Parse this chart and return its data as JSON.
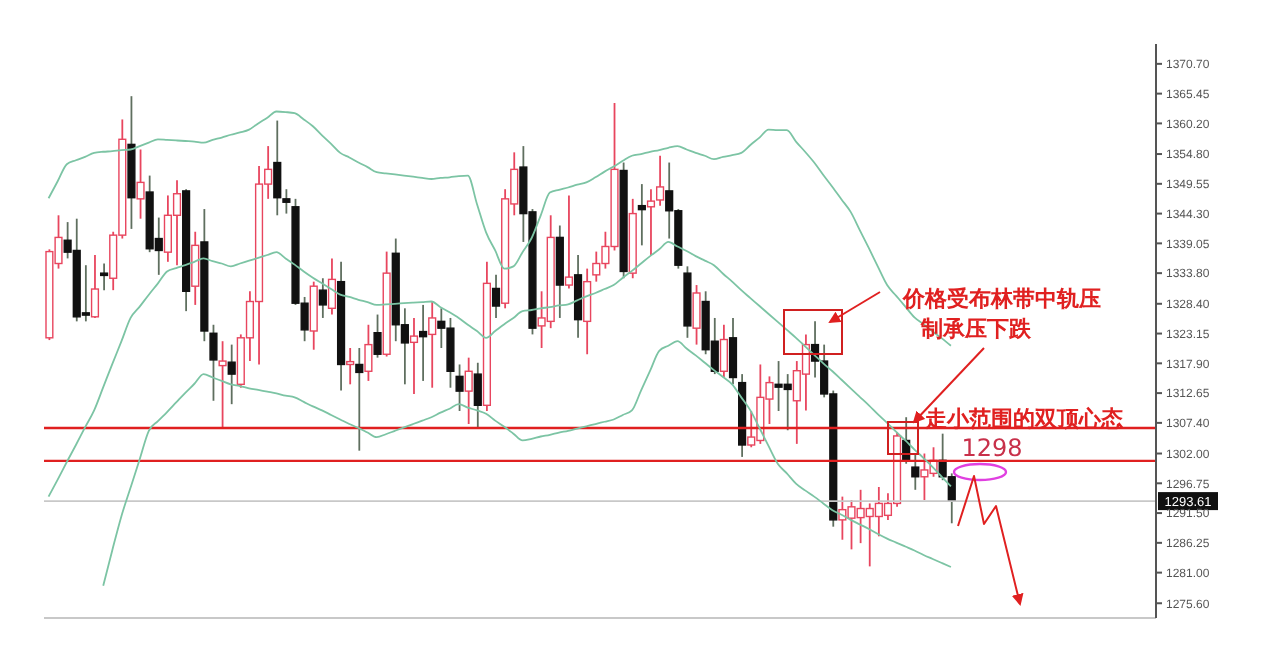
{
  "chart_data": {
    "type": "candlestick",
    "categories": [
      null,
      null,
      null,
      null,
      null,
      null,
      null,
      null,
      null,
      null,
      null,
      null,
      null,
      null,
      null,
      null,
      null,
      null,
      null,
      null,
      null,
      null,
      null,
      null,
      null,
      null,
      null,
      null,
      null,
      null,
      null,
      null,
      null,
      null,
      null,
      null,
      null,
      null,
      null,
      null,
      null,
      null,
      null,
      null,
      null,
      null,
      null,
      null,
      null,
      null,
      null,
      null,
      null,
      null,
      null,
      null,
      null,
      null,
      null,
      null,
      null,
      null,
      null,
      null,
      null,
      null,
      null,
      null,
      null,
      null,
      null,
      null,
      null,
      null,
      null,
      null,
      null,
      null,
      null,
      null,
      null,
      null,
      null,
      null,
      null,
      null,
      null,
      null,
      null,
      null,
      null,
      null,
      null,
      null,
      null,
      null,
      null,
      null,
      null,
      null,
      null,
      null,
      null,
      null,
      null,
      null,
      null,
      null,
      null,
      null,
      null,
      null,
      null,
      null,
      null,
      null,
      null,
      null,
      null,
      null,
      null,
      null
    ],
    "ohlc": [
      [
        1322.4,
        1338,
        1322,
        1337.6
      ],
      [
        1335.5,
        1344,
        1334.6,
        1340.1
      ],
      [
        1339.6,
        1342.8,
        1336.4,
        1337.5
      ],
      [
        1337.8,
        1343.4,
        1325.3,
        1326.1
      ],
      [
        1326.8,
        1335.2,
        1325.3,
        1326.4
      ],
      [
        1326.1,
        1337,
        1325.9,
        1331
      ],
      [
        1333.8,
        1335.5,
        1330.8,
        1333.4
      ],
      [
        1332.9,
        1341.1,
        1330.8,
        1340.5
      ],
      [
        1340.5,
        1360.9,
        1339.9,
        1357.4
      ],
      [
        1356.5,
        1365,
        1341.6,
        1347.1
      ],
      [
        1346.9,
        1355.6,
        1343.4,
        1349.8
      ],
      [
        1348.1,
        1351,
        1337.5,
        1338.1
      ],
      [
        1339.9,
        1343.6,
        1333.5,
        1337.8
      ],
      [
        1337.5,
        1347.5,
        1335.8,
        1344
      ],
      [
        1344,
        1350.2,
        1335.2,
        1347.8
      ],
      [
        1348.3,
        1348.6,
        1327.1,
        1330.6
      ],
      [
        1331.5,
        1341.1,
        1328.2,
        1338.7
      ],
      [
        1339.3,
        1345.1,
        1321.8,
        1323.6
      ],
      [
        1323.2,
        1324.7,
        1311.3,
        1318.5
      ],
      [
        1317.5,
        1321.8,
        1306.6,
        1318.3
      ],
      [
        1318.1,
        1321.2,
        1310.7,
        1316
      ],
      [
        1314.2,
        1323,
        1313.6,
        1322.4
      ],
      [
        1322.4,
        1330.6,
        1318.3,
        1328.8
      ],
      [
        1328.8,
        1352.7,
        1317.7,
        1349.5
      ],
      [
        1349.5,
        1356.2,
        1346.9,
        1352.1
      ],
      [
        1353.3,
        1360.7,
        1344,
        1347.1
      ],
      [
        1346.9,
        1348.6,
        1344.3,
        1346.3
      ],
      [
        1345.5,
        1346.9,
        1328.2,
        1328.5
      ],
      [
        1328.5,
        1329.6,
        1321.8,
        1323.8
      ],
      [
        1323.6,
        1332.3,
        1320.3,
        1331.5
      ],
      [
        1330.8,
        1332.9,
        1325.9,
        1328.2
      ],
      [
        1327.6,
        1336.4,
        1326.5,
        1332.7
      ],
      [
        1332.3,
        1335.8,
        1313.1,
        1317.7
      ],
      [
        1317.7,
        1320.6,
        1314.2,
        1318.2
      ],
      [
        1317.7,
        1320.6,
        1302.5,
        1316.3
      ],
      [
        1316.5,
        1324.7,
        1314.8,
        1321.2
      ],
      [
        1323.3,
        1326.5,
        1318.9,
        1319.5
      ],
      [
        1319.5,
        1337.6,
        1319.1,
        1333.8
      ],
      [
        1337.3,
        1339.9,
        1321.8,
        1324.7
      ],
      [
        1324.7,
        1327.6,
        1314.2,
        1321.5
      ],
      [
        1321.6,
        1325.9,
        1312.5,
        1322.7
      ],
      [
        1323.5,
        1328.2,
        1314.8,
        1322.6
      ],
      [
        1323,
        1328.8,
        1313.6,
        1325.9
      ],
      [
        1325.3,
        1327.6,
        1320.6,
        1324.1
      ],
      [
        1324.1,
        1325.9,
        1313.6,
        1316.5
      ],
      [
        1315.6,
        1317.7,
        1309.5,
        1313
      ],
      [
        1313,
        1318.9,
        1307.2,
        1316.5
      ],
      [
        1316,
        1318,
        1306.6,
        1310.5
      ],
      [
        1310.5,
        1335.8,
        1309.5,
        1332
      ],
      [
        1331.1,
        1333.5,
        1325.9,
        1328
      ],
      [
        1328.5,
        1348.6,
        1327.6,
        1346.9
      ],
      [
        1346,
        1355.1,
        1344,
        1352.1
      ],
      [
        1352.5,
        1356.2,
        1339.3,
        1344.3
      ],
      [
        1344.6,
        1345.1,
        1323,
        1324.1
      ],
      [
        1324.5,
        1330.6,
        1320.6,
        1325.9
      ],
      [
        1325.3,
        1344,
        1324.1,
        1340.1
      ],
      [
        1340.1,
        1342.2,
        1325.9,
        1331.7
      ],
      [
        1331.7,
        1347.5,
        1331.1,
        1333.1
      ],
      [
        1333.5,
        1337,
        1322.4,
        1325.6
      ],
      [
        1325.3,
        1334.6,
        1319.5,
        1332.3
      ],
      [
        1333.5,
        1337.6,
        1332.3,
        1335.5
      ],
      [
        1335.5,
        1341.1,
        1334.6,
        1338.5
      ],
      [
        1338.5,
        1363.8,
        1337.8,
        1352.1
      ],
      [
        1351.9,
        1353.3,
        1332.9,
        1334.1
      ],
      [
        1333.8,
        1346.9,
        1332.9,
        1344.3
      ],
      [
        1345.7,
        1349.5,
        1338.7,
        1345
      ],
      [
        1345.5,
        1348.6,
        1337,
        1346.5
      ],
      [
        1346.7,
        1354.5,
        1345.7,
        1349
      ],
      [
        1348.3,
        1353.3,
        1339.9,
        1344.8
      ],
      [
        1344.8,
        1345.1,
        1334.6,
        1335.2
      ],
      [
        1333.8,
        1335,
        1322.4,
        1324.5
      ],
      [
        1324.1,
        1331.7,
        1321.2,
        1330.3
      ],
      [
        1328.8,
        1330.6,
        1319.5,
        1320.3
      ],
      [
        1321.8,
        1325.9,
        1316,
        1316.5
      ],
      [
        1316.5,
        1324.7,
        1315.4,
        1322.1
      ],
      [
        1322.4,
        1325.9,
        1314.2,
        1315.4
      ],
      [
        1314.5,
        1316,
        1301.4,
        1303.5
      ],
      [
        1303.5,
        1309.5,
        1303.1,
        1304.9
      ],
      [
        1304.3,
        1317.7,
        1303.7,
        1311.9
      ],
      [
        1311.6,
        1315.6,
        1307.2,
        1314.5
      ],
      [
        1314.2,
        1318.3,
        1309.5,
        1313.7
      ],
      [
        1314.2,
        1316,
        1306.1,
        1313.3
      ],
      [
        1311.3,
        1318.3,
        1303.7,
        1316.6
      ],
      [
        1316,
        1323,
        1309.6,
        1321.2
      ],
      [
        1321.2,
        1325.3,
        1315.4,
        1318.3
      ],
      [
        1318.3,
        1321.2,
        1311.9,
        1312.5
      ],
      [
        1312.5,
        1313.1,
        1289.1,
        1290.3
      ],
      [
        1290.3,
        1294.4,
        1286.8,
        1292.1
      ],
      [
        1290.6,
        1293.8,
        1285.1,
        1292.6
      ],
      [
        1290.7,
        1295.6,
        1286.2,
        1292.3
      ],
      [
        1290.9,
        1293.2,
        1282.1,
        1292.3
      ],
      [
        1290.9,
        1296.1,
        1287.4,
        1293.2
      ],
      [
        1291.1,
        1295,
        1290.3,
        1293.2
      ],
      [
        1293.2,
        1305.8,
        1292.6,
        1305.1
      ],
      [
        1304.3,
        1308.4,
        1300.2,
        1300.8
      ],
      [
        1299.6,
        1302,
        1295.6,
        1297.9
      ],
      [
        1297.9,
        1302,
        1293.8,
        1299.1
      ],
      [
        1298.5,
        1303.1,
        1297.9,
        1300.8
      ],
      [
        1300.8,
        1305.5,
        1297.3,
        1297.9
      ],
      [
        1297.9,
        1298.5,
        1289.7,
        1293.61
      ],
      null,
      null,
      null,
      null,
      null,
      null,
      null,
      null,
      null,
      null,
      null,
      null,
      null,
      null,
      null,
      null,
      null,
      null,
      null,
      null,
      null,
      null
    ],
    "series": [
      {
        "type": "line",
        "color": "#7cc4a4",
        "values": [
          1347,
          1350,
          1353,
          1353.7,
          1354.3,
          1355,
          1355.2,
          1355.3,
          1355.5,
          1355.6,
          1356.2,
          1356.8,
          1357.4,
          1357.3,
          1357.2,
          1357.1,
          1357,
          1356.8,
          1357.3,
          1357.7,
          1358.2,
          1358.6,
          1359.1,
          1360.2,
          1361.2,
          1362.3,
          1362.2,
          1362,
          1360.9,
          1359.7,
          1358.1,
          1356.6,
          1355,
          1354.2,
          1353.3,
          1352.5,
          1351.6,
          1351.4,
          1351.2,
          1351,
          1350.8,
          1350.6,
          1350.4,
          1350.6,
          1350.7,
          1350.9,
          1351,
          1346,
          1341,
          1337.8,
          1334.6,
          1335,
          1337.5,
          1340,
          1344,
          1348,
          1348.5,
          1348.9,
          1349.4,
          1349.8,
          1350.7,
          1351.7,
          1352.6,
          1353.6,
          1354.5,
          1354.8,
          1355.2,
          1355.5,
          1355.9,
          1356.2,
          1355.6,
          1355,
          1354.5,
          1353.9,
          1354.3,
          1354.6,
          1355,
          1356.4,
          1357.7,
          1359.1,
          1359,
          1359,
          1357,
          1355.2,
          1353.3,
          1351.1,
          1349,
          1346.8,
          1344.6,
          1341.4,
          1338.2,
          1334.9,
          1331.7,
          1329.8,
          1327.9,
          1326,
          1324.8,
          1323.5,
          1322.3,
          1321,
          null,
          null,
          null,
          null,
          null,
          null,
          null,
          null,
          null,
          null,
          null,
          null,
          null,
          null,
          null,
          null,
          null,
          null,
          null,
          null,
          null,
          null
        ]
      },
      {
        "type": "line",
        "color": "#7cc4a4",
        "values": [
          1294.4,
          1297.4,
          1300.5,
          1303.5,
          1306.6,
          1309.6,
          1313.7,
          1317.8,
          1321.8,
          1325.9,
          1327.9,
          1330,
          1332,
          1334.1,
          1334.7,
          1335.2,
          1335.8,
          1336.4,
          1335.9,
          1335.5,
          1335,
          1335.5,
          1336,
          1336.5,
          1337,
          1337.5,
          1336.4,
          1335.3,
          1334.1,
          1333,
          1332,
          1331,
          1330,
          1329.6,
          1329.1,
          1328.7,
          1328.2,
          1328.3,
          1328.4,
          1328.5,
          1328.6,
          1328.7,
          1328.8,
          1327.8,
          1326.9,
          1325.9,
          1324.7,
          1323.6,
          1322.4,
          1323.6,
          1324.8,
          1325.9,
          1327.1,
          1327.3,
          1327.6,
          1327.8,
          1328.1,
          1328.3,
          1329,
          1329.7,
          1330.3,
          1331,
          1331.7,
          1333,
          1334.2,
          1335.5,
          1336.8,
          1338,
          1339.3,
          1338.5,
          1337.7,
          1336.8,
          1336,
          1335.2,
          1333.7,
          1332.3,
          1330.8,
          1329.4,
          1328,
          1326.6,
          1325.2,
          1323.8,
          1322.4,
          1320.9,
          1319.4,
          1317.9,
          1316.5,
          1315,
          1313.5,
          1312,
          1310.5,
          1308.9,
          1307.4,
          1305.8,
          1304.3,
          1302.7,
          1301.2,
          1299.6,
          1297.9,
          1296.2,
          null,
          null,
          null,
          null,
          null,
          null,
          null,
          null,
          null,
          null,
          null,
          null,
          null,
          null,
          null,
          null,
          null,
          null,
          null,
          null,
          null,
          null
        ]
      },
      {
        "type": "line",
        "color": "#7cc4a4",
        "values": [
          null,
          null,
          null,
          null,
          null,
          null,
          1278.7,
          1285,
          1291,
          1296,
          1301,
          1306,
          1307.7,
          1309.3,
          1311,
          1312.7,
          1314.3,
          1316,
          1315.4,
          1314.8,
          1314.2,
          1313.9,
          1313.5,
          1313.2,
          1312.9,
          1312.6,
          1312.2,
          1311.9,
          1311.1,
          1310.3,
          1309.6,
          1308.8,
          1308,
          1307.2,
          1306.5,
          1305.7,
          1304.9,
          1305.4,
          1306,
          1306.6,
          1307.2,
          1307.8,
          1308.4,
          1309.2,
          1309.9,
          1310.7,
          1310.1,
          1309.6,
          1309,
          1307.8,
          1306.7,
          1305.5,
          1304.3,
          1304.6,
          1305,
          1305.3,
          1305.7,
          1306,
          1306.4,
          1306.8,
          1307.2,
          1307.6,
          1308,
          1308.8,
          1309.6,
          1313.1,
          1316.6,
          1320.1,
          1321,
          1321.8,
          1320.5,
          1319.3,
          1318,
          1316.7,
          1315.5,
          1314.2,
          1311.9,
          1309.6,
          1306.5,
          1303.3,
          1300.2,
          1298.5,
          1296.7,
          1295.5,
          1294.4,
          1293.2,
          1292,
          1291.2,
          1290.3,
          1289.5,
          1288.7,
          1287.8,
          1287,
          1286.3,
          1285.6,
          1284.9,
          1284.1,
          1283.4,
          1282.7,
          1282,
          null,
          null,
          null,
          null,
          null,
          null,
          null,
          null,
          null,
          null,
          null,
          null,
          null,
          null,
          null,
          null,
          null,
          null,
          null,
          null,
          null,
          null
        ]
      }
    ],
    "ylim": [
      1273,
      1374.2
    ],
    "yticks": [
      {
        "value": 1370.7,
        "label": "1370.70"
      },
      {
        "value": 1365.45,
        "label": "1365.45"
      },
      {
        "value": 1360.2,
        "label": "1360.20"
      },
      {
        "value": 1354.8,
        "label": "1354.80"
      },
      {
        "value": 1349.55,
        "label": "1349.55"
      },
      {
        "value": 1344.3,
        "label": "1344.30"
      },
      {
        "value": 1339.05,
        "label": "1339.05"
      },
      {
        "value": 1333.8,
        "label": "1333.80"
      },
      {
        "value": 1328.4,
        "label": "1328.40"
      },
      {
        "value": 1323.15,
        "label": "1323.15"
      },
      {
        "value": 1317.9,
        "label": "1317.90"
      },
      {
        "value": 1312.65,
        "label": "1312.65"
      },
      {
        "value": 1307.4,
        "label": "1307.40"
      },
      {
        "value": 1302,
        "label": "1302.00"
      },
      {
        "value": 1296.75,
        "label": "1296.75"
      },
      {
        "value": 1291.5,
        "label": "1291.50"
      },
      {
        "value": 1286.25,
        "label": "1286.25"
      },
      {
        "value": 1281,
        "label": "1281.00"
      },
      {
        "value": 1275.6,
        "label": "1275.60"
      }
    ],
    "tick_labels": "y",
    "ref_lines": [
      {
        "axis": "y",
        "value": 1306.5,
        "color": "#e02020"
      },
      {
        "axis": "y",
        "value": 1300.7,
        "color": "#e02020"
      },
      {
        "axis": "y",
        "value": 1293.61,
        "label": "1293.61",
        "color": "#c8c8c8"
      }
    ],
    "annotations": [
      "价格受布林带中轨压",
      "制承压下跌",
      "走小范围的双顶心态",
      "1298"
    ]
  }
}
